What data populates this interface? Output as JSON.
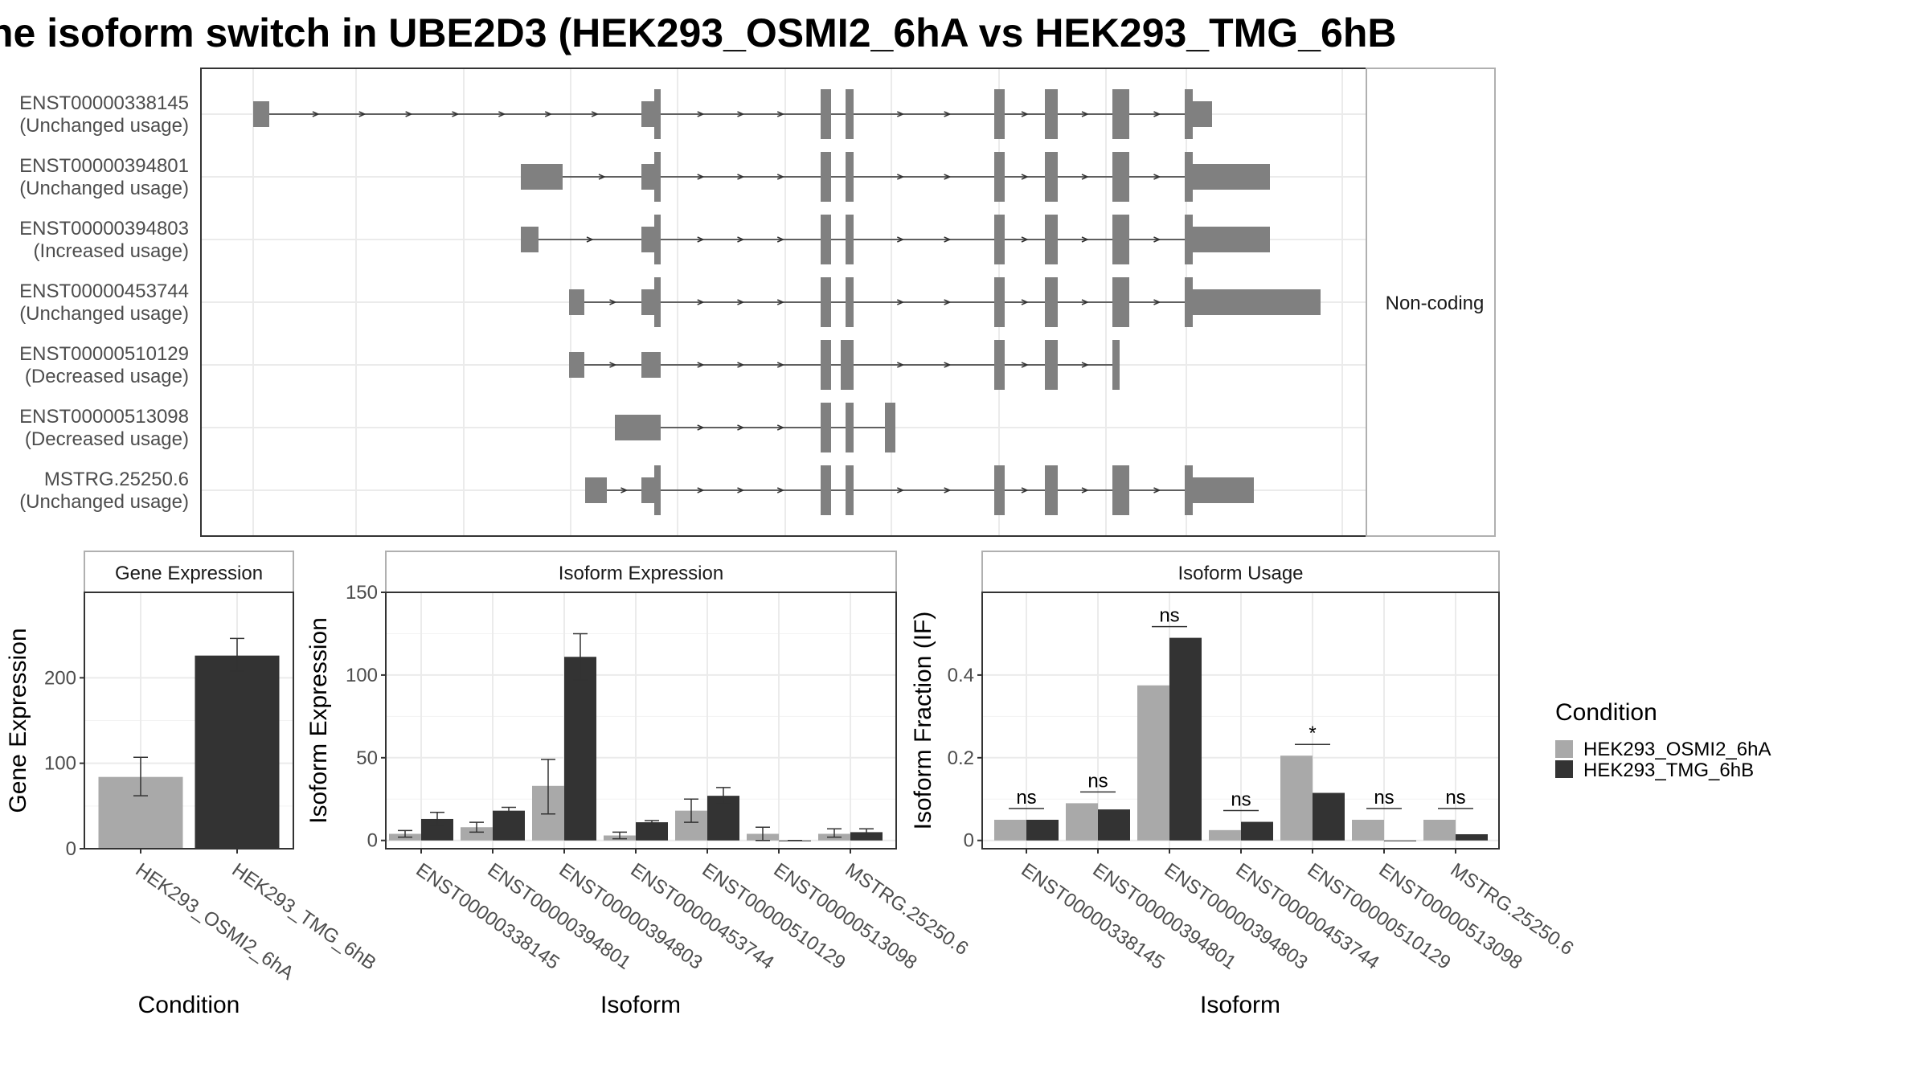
{
  "title": "he isoform switch in UBE2D3 (HEK293_OSMI2_6hA vs HEK293_TMG_6hB",
  "colors": {
    "condition_a": "#a9a9a9",
    "condition_b": "#333333",
    "exon": "#808080",
    "intron": "#333333",
    "grid": "#ebebeb",
    "border": "#333333",
    "strip_border": "#b0b0b0"
  },
  "structure_panel": {
    "label": "Non-coding",
    "isoforms": [
      {
        "id": "ENST00000338145",
        "status": "(Unchanged usage)"
      },
      {
        "id": "ENST00000394801",
        "status": "(Unchanged usage)"
      },
      {
        "id": "ENST00000394803",
        "status": "(Increased usage)"
      },
      {
        "id": "ENST00000453744",
        "status": "(Unchanged usage)"
      },
      {
        "id": "ENST00000510129",
        "status": "(Decreased usage)"
      },
      {
        "id": "ENST00000513098",
        "status": "(Decreased usage)"
      },
      {
        "id": "MSTRG.25250.6",
        "status": "(Unchanged usage)"
      }
    ]
  },
  "legend": {
    "title": "Condition",
    "items": [
      "HEK293_OSMI2_6hA",
      "HEK293_TMG_6hB"
    ]
  },
  "chart_data": [
    {
      "type": "bar",
      "title": "Gene Expression",
      "xlabel": "Condition",
      "ylabel": "Gene Expression",
      "categories": [
        "HEK293_OSMI2_6hA",
        "HEK293_TMG_6hB"
      ],
      "values": [
        84,
        226
      ],
      "error_low": [
        62,
        208
      ],
      "error_high": [
        107,
        246
      ],
      "yticks": [
        0,
        100,
        200
      ],
      "ylim": [
        0,
        300
      ]
    },
    {
      "type": "bar",
      "title": "Isoform Expression",
      "xlabel": "Isoform",
      "ylabel": "Isoform Expression",
      "categories": [
        "ENST00000338145",
        "ENST00000394801",
        "ENST00000394803",
        "ENST00000453744",
        "ENST00000510129",
        "ENST00000513098",
        "MSTRG.25250.6"
      ],
      "series": [
        {
          "name": "HEK293_OSMI2_6hA",
          "values": [
            4,
            8,
            33,
            3,
            18,
            4,
            4
          ],
          "error_low": [
            2,
            5,
            16,
            1,
            11,
            0,
            2
          ],
          "error_high": [
            6,
            11,
            49,
            5,
            25,
            8,
            7
          ]
        },
        {
          "name": "HEK293_TMG_6hB",
          "values": [
            13,
            18,
            111,
            11,
            27,
            0,
            5
          ],
          "error_low": [
            9,
            16,
            97,
            10,
            22,
            0,
            3
          ],
          "error_high": [
            17,
            20,
            125,
            12,
            32,
            0,
            7
          ]
        }
      ],
      "yticks": [
        0,
        50,
        100,
        150
      ],
      "ylim": [
        -5,
        150
      ]
    },
    {
      "type": "bar",
      "title": "Isoform Usage",
      "xlabel": "Isoform",
      "ylabel": "Isoform Fraction (IF)",
      "categories": [
        "ENST00000338145",
        "ENST00000394801",
        "ENST00000394803",
        "ENST00000453744",
        "ENST00000510129",
        "ENST00000513098",
        "MSTRG.25250.6"
      ],
      "series": [
        {
          "name": "HEK293_OSMI2_6hA",
          "values": [
            0.05,
            0.09,
            0.375,
            0.025,
            0.205,
            0.05,
            0.05
          ]
        },
        {
          "name": "HEK293_TMG_6hB",
          "values": [
            0.05,
            0.075,
            0.49,
            0.045,
            0.115,
            0.0,
            0.015
          ]
        }
      ],
      "significance": [
        "ns",
        "ns",
        "ns",
        "ns",
        "*",
        "ns",
        "ns"
      ],
      "yticks": [
        0.0,
        0.2,
        0.4
      ],
      "ylim": [
        -0.02,
        0.6
      ]
    }
  ]
}
